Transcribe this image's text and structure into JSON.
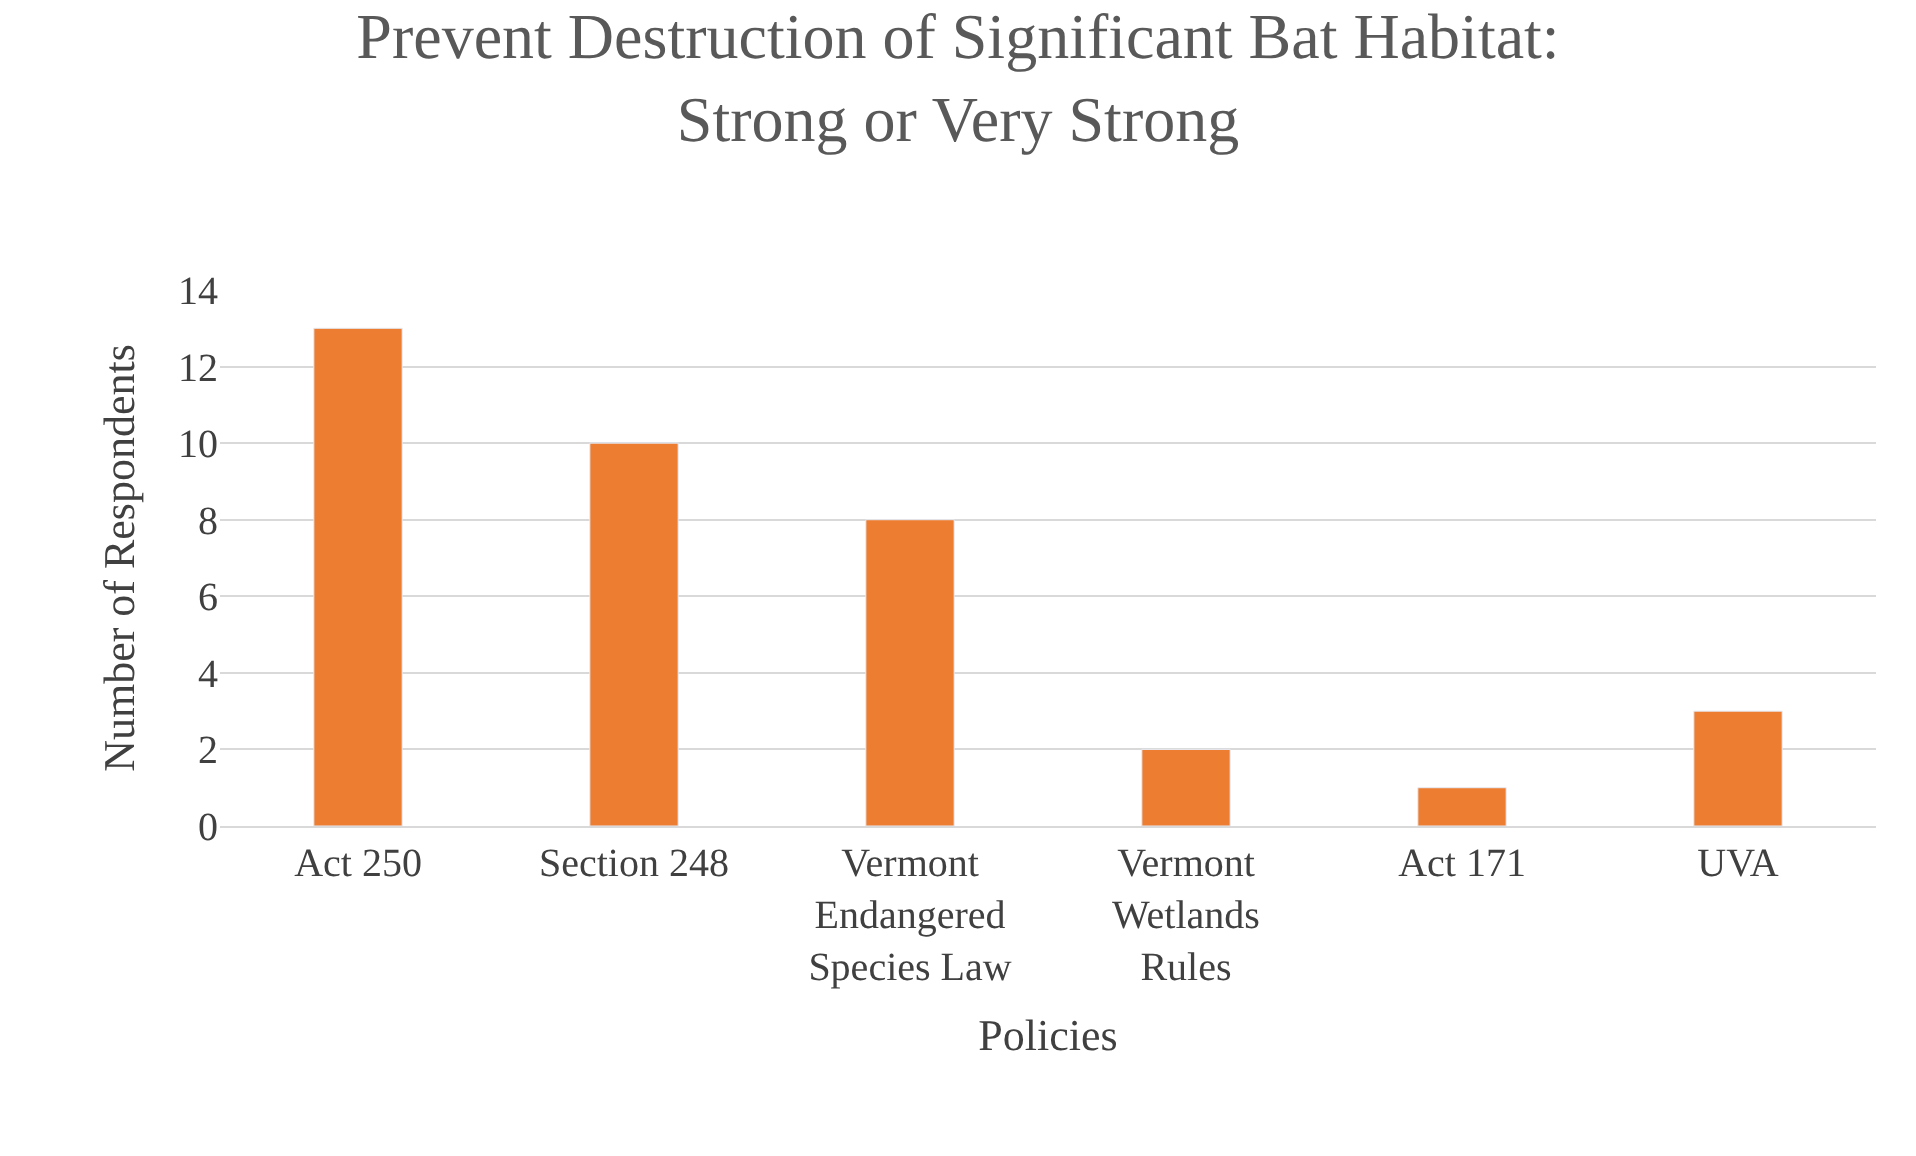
{
  "chart_data": {
    "type": "bar",
    "title": "Prevent Destruction of Significant Bat Habitat:\nStrong or Very Strong",
    "xlabel": "Policies",
    "ylabel": "Number of Respondents",
    "categories": [
      "Act 250",
      "Section 248",
      "Vermont Endangered Species Law",
      "Vermont Wetlands Rules",
      "Act 171",
      "UVA"
    ],
    "values": [
      13,
      10,
      8,
      2,
      1,
      3
    ],
    "color": "#ed7d31",
    "ylim": [
      0,
      14
    ],
    "yticks": [
      0,
      2,
      4,
      6,
      8,
      10,
      12,
      14
    ],
    "grid": "y",
    "legend": false
  }
}
